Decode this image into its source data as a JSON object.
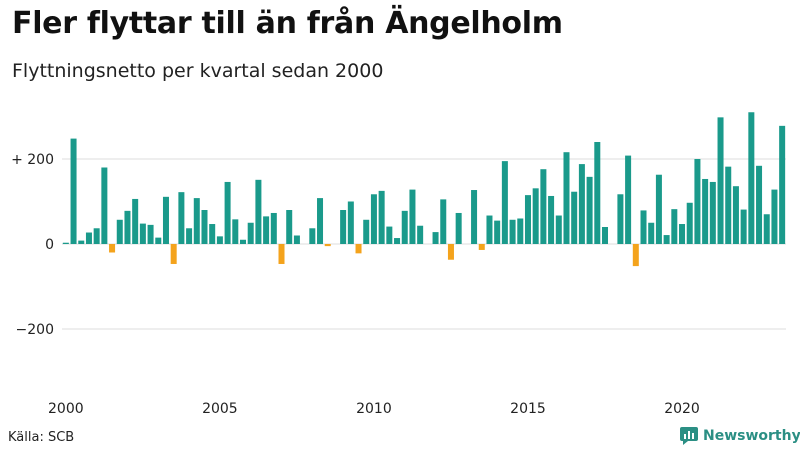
{
  "title": "Fler flyttar till än från Ängelholm",
  "subtitle": "Flyttningsnetto per kvartal sedan 2000",
  "source": "Källa: SCB",
  "brand": "Newsworthy",
  "colors": {
    "positive": "#1a9a8b",
    "negative": "#f4a31c",
    "grid": "#dddddd",
    "brand": "#2b8f84"
  },
  "chart_data": {
    "type": "bar",
    "title": "Fler flyttar till än från Ängelholm",
    "subtitle": "Flyttningsnetto per kvartal sedan 2000",
    "xlabel": "",
    "ylabel": "",
    "x_start": "2000 Q1",
    "period": "kvartal",
    "ylim": [
      -300,
      310
    ],
    "yticks": [
      {
        "value": 200,
        "label": "+ 200"
      },
      {
        "value": 0,
        "label": "0"
      },
      {
        "value": -200,
        "label": "−200"
      }
    ],
    "xticks": [
      {
        "index": 0,
        "label": "2000"
      },
      {
        "index": 20,
        "label": "2005"
      },
      {
        "index": 40,
        "label": "2010"
      },
      {
        "index": 60,
        "label": "2015"
      },
      {
        "index": 80,
        "label": "2020"
      }
    ],
    "grid": true,
    "values": [
      3,
      248,
      8,
      27,
      37,
      180,
      -20,
      57,
      78,
      106,
      48,
      45,
      15,
      111,
      -47,
      122,
      37,
      108,
      80,
      47,
      18,
      146,
      58,
      10,
      50,
      151,
      65,
      73,
      -47,
      80,
      20,
      0,
      37,
      108,
      -5,
      0,
      80,
      100,
      -22,
      57,
      117,
      125,
      41,
      14,
      78,
      128,
      43,
      0,
      28,
      105,
      -37,
      73,
      0,
      127,
      -14,
      67,
      55,
      195,
      57,
      60,
      115,
      131,
      176,
      113,
      67,
      216,
      123,
      188,
      158,
      240,
      40,
      0,
      117,
      208,
      -52,
      79,
      50,
      163,
      21,
      82,
      47,
      97,
      200,
      153,
      146,
      298,
      182,
      136,
      81,
      310,
      184,
      70,
      128,
      278
    ]
  }
}
